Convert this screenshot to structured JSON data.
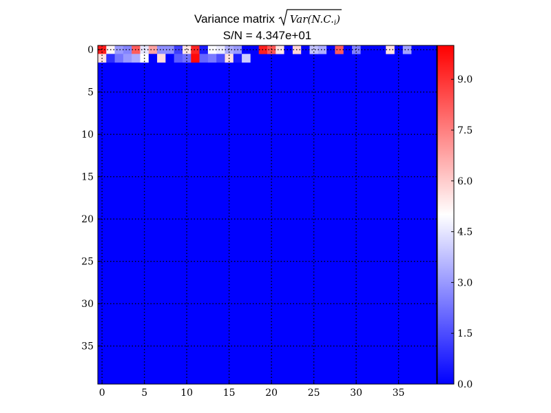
{
  "chart_data": {
    "type": "heatmap",
    "title_prefix": "Variance matrix",
    "title_math": "Var(N.C.",
    "title_math_sub": "i",
    "title_math_close": ")",
    "subtitle": "S/N = 4.347e+01",
    "n_rows": 40,
    "n_cols": 40,
    "x_ticks": [
      0,
      5,
      10,
      15,
      20,
      25,
      30,
      35
    ],
    "y_ticks": [
      0,
      5,
      10,
      15,
      20,
      25,
      30,
      35
    ],
    "grid": true,
    "colormap": "bwr",
    "background_value": 0.0,
    "vmin": 0.0,
    "vmax": 10.0,
    "colorbar_ticks": [
      "0.0",
      "1.5",
      "3.0",
      "4.5",
      "6.0",
      "7.5",
      "9.0"
    ],
    "cells": [
      [
        0,
        0,
        9.5
      ],
      [
        0,
        1,
        5.2
      ],
      [
        0,
        2,
        3.0
      ],
      [
        0,
        3,
        2.6
      ],
      [
        0,
        4,
        8.2
      ],
      [
        0,
        5,
        4.5
      ],
      [
        0,
        6,
        6.8
      ],
      [
        0,
        7,
        2.8
      ],
      [
        0,
        8,
        2.8
      ],
      [
        0,
        9,
        1.2
      ],
      [
        0,
        10,
        5.5
      ],
      [
        0,
        11,
        9.3
      ],
      [
        0,
        12,
        0.5
      ],
      [
        0,
        13,
        4.9
      ],
      [
        0,
        14,
        4.6
      ],
      [
        0,
        15,
        3.4
      ],
      [
        0,
        16,
        3.0
      ],
      [
        0,
        17,
        0.0
      ],
      [
        0,
        18,
        0.0
      ],
      [
        0,
        19,
        9.4
      ],
      [
        0,
        20,
        8.3
      ],
      [
        0,
        21,
        5.5
      ],
      [
        0,
        22,
        0.0
      ],
      [
        0,
        23,
        5.8
      ],
      [
        0,
        24,
        0.0
      ],
      [
        0,
        25,
        3.8
      ],
      [
        0,
        26,
        3.4
      ],
      [
        0,
        27,
        0.0
      ],
      [
        0,
        28,
        8.2
      ],
      [
        0,
        29,
        0.0
      ],
      [
        0,
        30,
        2.5
      ],
      [
        0,
        34,
        5.6
      ],
      [
        0,
        36,
        3.2
      ],
      [
        1,
        0,
        5.6
      ],
      [
        1,
        1,
        0.9
      ],
      [
        1,
        2,
        2.3
      ],
      [
        1,
        3,
        3.0
      ],
      [
        1,
        4,
        3.4
      ],
      [
        1,
        5,
        5.0
      ],
      [
        1,
        6,
        0.0
      ],
      [
        1,
        7,
        5.7
      ],
      [
        1,
        8,
        0.0
      ],
      [
        1,
        9,
        1.8
      ],
      [
        1,
        10,
        2.2
      ],
      [
        1,
        11,
        9.8
      ],
      [
        1,
        12,
        2.0
      ],
      [
        1,
        13,
        2.4
      ],
      [
        1,
        14,
        1.5
      ],
      [
        1,
        15,
        5.6
      ],
      [
        1,
        16,
        0.5
      ],
      [
        1,
        17,
        4.0
      ]
    ]
  }
}
